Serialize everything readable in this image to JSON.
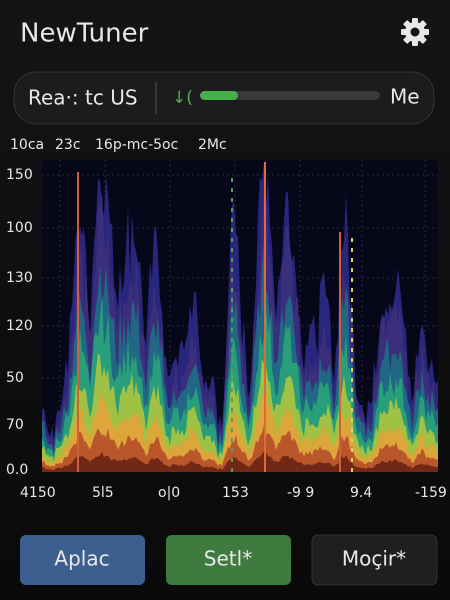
{
  "header": {
    "title": "NewTuner"
  },
  "search": {
    "text": "Rea·: tc US",
    "value_label": "Me"
  },
  "info_row": [
    "10ca",
    "23c",
    "16p-mc-5oc",
    "2Mc"
  ],
  "spectrogram": {
    "y_labels": [
      "150",
      "100",
      "130",
      "120",
      "50",
      "70",
      "0.0"
    ],
    "x_labels": [
      "4150",
      "5l5",
      "o|0",
      "153",
      "-9 9",
      "9.4",
      "-159"
    ]
  },
  "buttons": [
    "Aplac",
    "Setl*",
    "Moçir*"
  ]
}
